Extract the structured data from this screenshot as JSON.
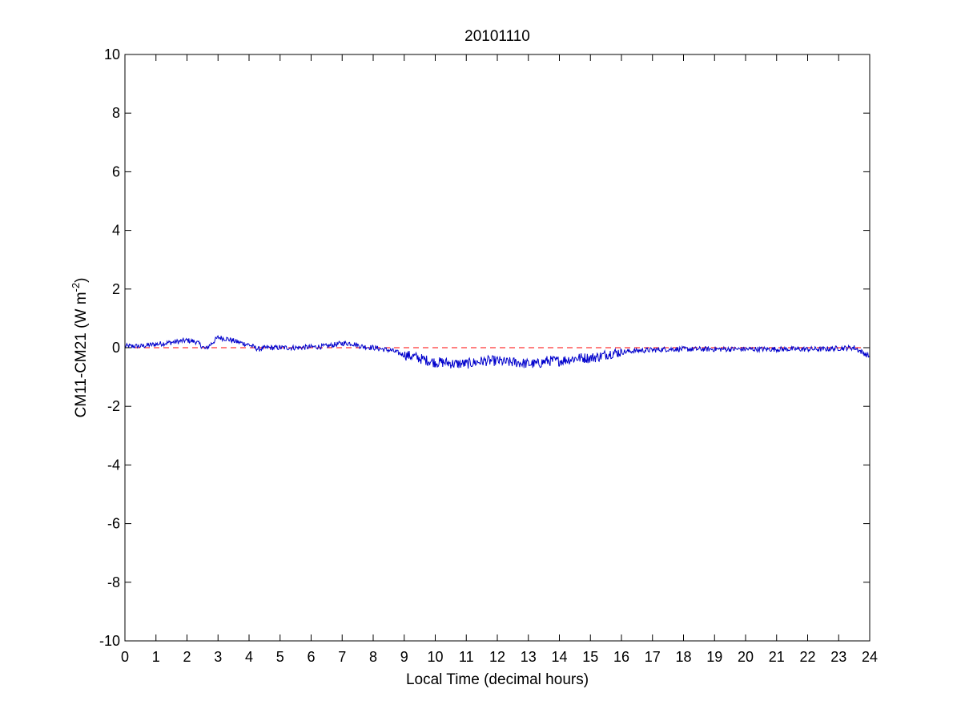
{
  "chart_data": {
    "type": "line",
    "title": "20101110",
    "xlabel": "Local Time (decimal hours)",
    "ylabel_parts": {
      "main": "CM11-CM21 (W m",
      "superscript": "-2",
      "close": ")"
    },
    "xlim": [
      0,
      24
    ],
    "ylim": [
      -10,
      10
    ],
    "xticks": [
      0,
      1,
      2,
      3,
      4,
      5,
      6,
      7,
      8,
      9,
      10,
      11,
      12,
      13,
      14,
      15,
      16,
      17,
      18,
      19,
      20,
      21,
      22,
      23,
      24
    ],
    "xtick_labels": [
      "0",
      "1",
      "2",
      "3",
      "4",
      "5",
      "6",
      "7",
      "8",
      "9",
      "10",
      "11",
      "12",
      "13",
      "14",
      "15",
      "16",
      "17",
      "18",
      "19",
      "20",
      "21",
      "22",
      "23",
      "24"
    ],
    "yticks": [
      -10,
      -8,
      -6,
      -4,
      -2,
      0,
      2,
      4,
      6,
      8,
      10
    ],
    "ytick_labels": [
      "-10",
      "-8",
      "-6",
      "-4",
      "-2",
      "0",
      "2",
      "4",
      "6",
      "8",
      "10"
    ],
    "grid": false,
    "reference_line": {
      "y": 0,
      "style": "dashed",
      "color": "#ff0000"
    },
    "series": [
      {
        "color": "#0000cc",
        "x": [
          0,
          0.5,
          1,
          1.5,
          2,
          2.3,
          2.6,
          2.8,
          3,
          3.3,
          3.6,
          4,
          4.3,
          4.6,
          5,
          5.5,
          6,
          6.5,
          7,
          7.3,
          7.6,
          8,
          8.3,
          8.6,
          9,
          9.3,
          9.6,
          10,
          10.3,
          10.6,
          11,
          11.3,
          11.6,
          12,
          12.3,
          12.6,
          13,
          13.3,
          13.6,
          14,
          14.3,
          14.6,
          15,
          15.3,
          15.6,
          16,
          16.5,
          17,
          17.5,
          18,
          18.5,
          19,
          19.5,
          20,
          20.5,
          21,
          21.5,
          22,
          22.5,
          23,
          23.5,
          24
        ],
        "y": [
          0.05,
          0.05,
          0.12,
          0.18,
          0.25,
          0.2,
          -0.05,
          0.15,
          0.35,
          0.3,
          0.2,
          0.1,
          -0.05,
          0.0,
          0.0,
          0.0,
          0.02,
          0.05,
          0.15,
          0.15,
          0.05,
          0.0,
          -0.05,
          -0.1,
          -0.25,
          -0.3,
          -0.4,
          -0.5,
          -0.5,
          -0.55,
          -0.55,
          -0.5,
          -0.45,
          -0.45,
          -0.5,
          -0.5,
          -0.55,
          -0.55,
          -0.45,
          -0.45,
          -0.4,
          -0.35,
          -0.35,
          -0.3,
          -0.2,
          -0.15,
          -0.1,
          -0.08,
          -0.05,
          -0.05,
          -0.05,
          -0.05,
          -0.05,
          -0.05,
          -0.05,
          -0.05,
          -0.05,
          -0.05,
          -0.05,
          -0.02,
          0.0,
          -0.3
        ]
      }
    ]
  },
  "colors": {
    "series": "#0000cc",
    "reference": "#ff0000",
    "axes": "#000000"
  }
}
